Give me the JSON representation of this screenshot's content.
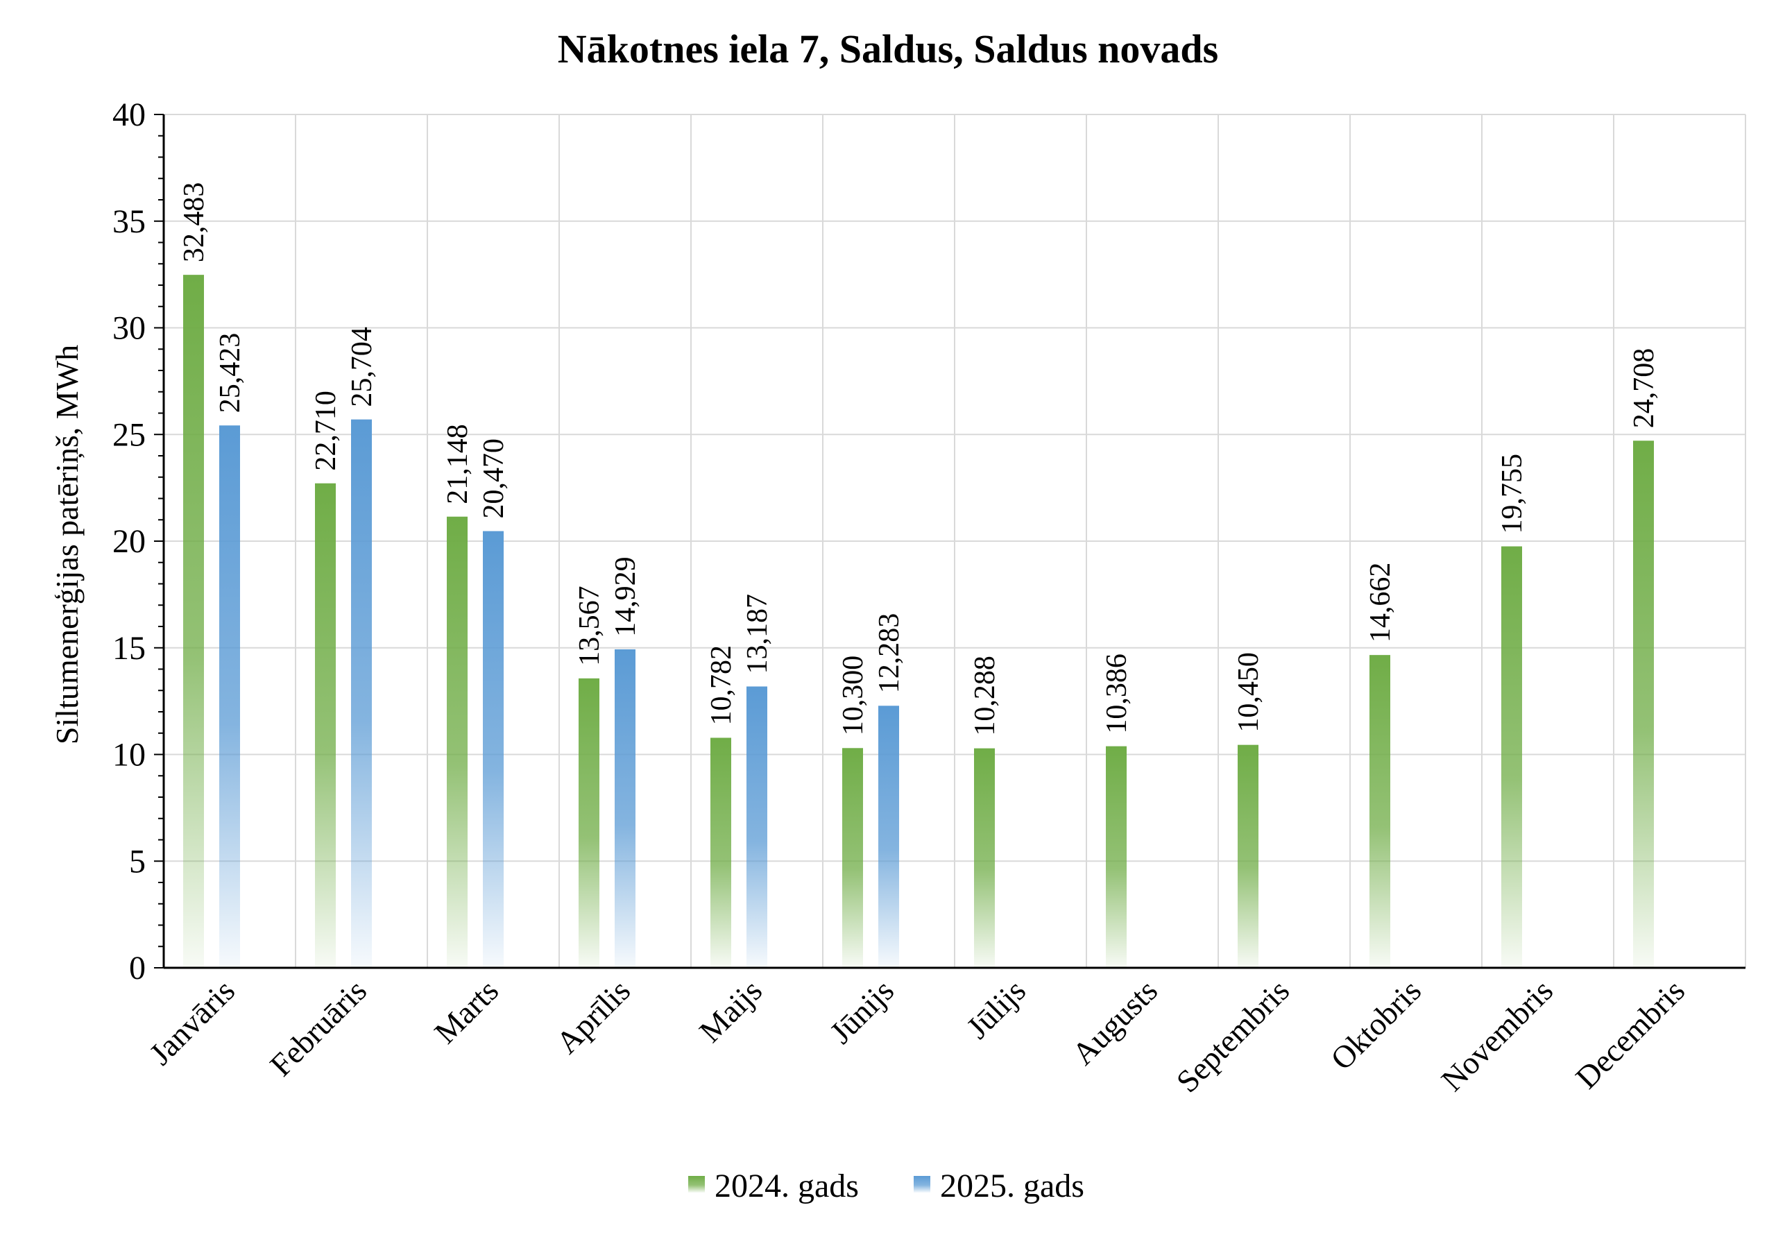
{
  "chart_data": {
    "type": "bar",
    "title": "Nākotnes iela 7, Saldus, Saldus novads",
    "xlabel": "",
    "ylabel": "Siltumenerģijas patēriņš, MWh",
    "ylim": [
      0,
      40
    ],
    "y_ticks": [
      "0",
      "5",
      "10",
      "15",
      "20",
      "25",
      "30",
      "35",
      "40"
    ],
    "grid": true,
    "legend_position": "bottom",
    "categories": [
      "Janvāris",
      "Februāris",
      "Marts",
      "Aprīlis",
      "Maijs",
      "Jūnijs",
      "Jūlijs",
      "Augusts",
      "Septembris",
      "Oktobris",
      "Novembris",
      "Decembris"
    ],
    "series": [
      {
        "name": "2024. gads",
        "color": "#70ad47",
        "values": [
          32.483,
          22.71,
          21.148,
          13.567,
          10.782,
          10.3,
          10.288,
          10.386,
          10.45,
          14.662,
          19.755,
          24.708
        ],
        "labels": [
          "32,483",
          "22,710",
          "21,148",
          "13,567",
          "10,782",
          "10,300",
          "10,288",
          "10,386",
          "10,450",
          "14,662",
          "19,755",
          "24,708"
        ]
      },
      {
        "name": "2025. gads",
        "color": "#5b9bd5",
        "values": [
          25.423,
          25.704,
          20.47,
          14.929,
          13.187,
          12.283,
          null,
          null,
          null,
          null,
          null,
          null
        ],
        "labels": [
          "25,423",
          "25,704",
          "20,470",
          "14,929",
          "13,187",
          "12,283",
          null,
          null,
          null,
          null,
          null,
          null
        ]
      }
    ]
  }
}
